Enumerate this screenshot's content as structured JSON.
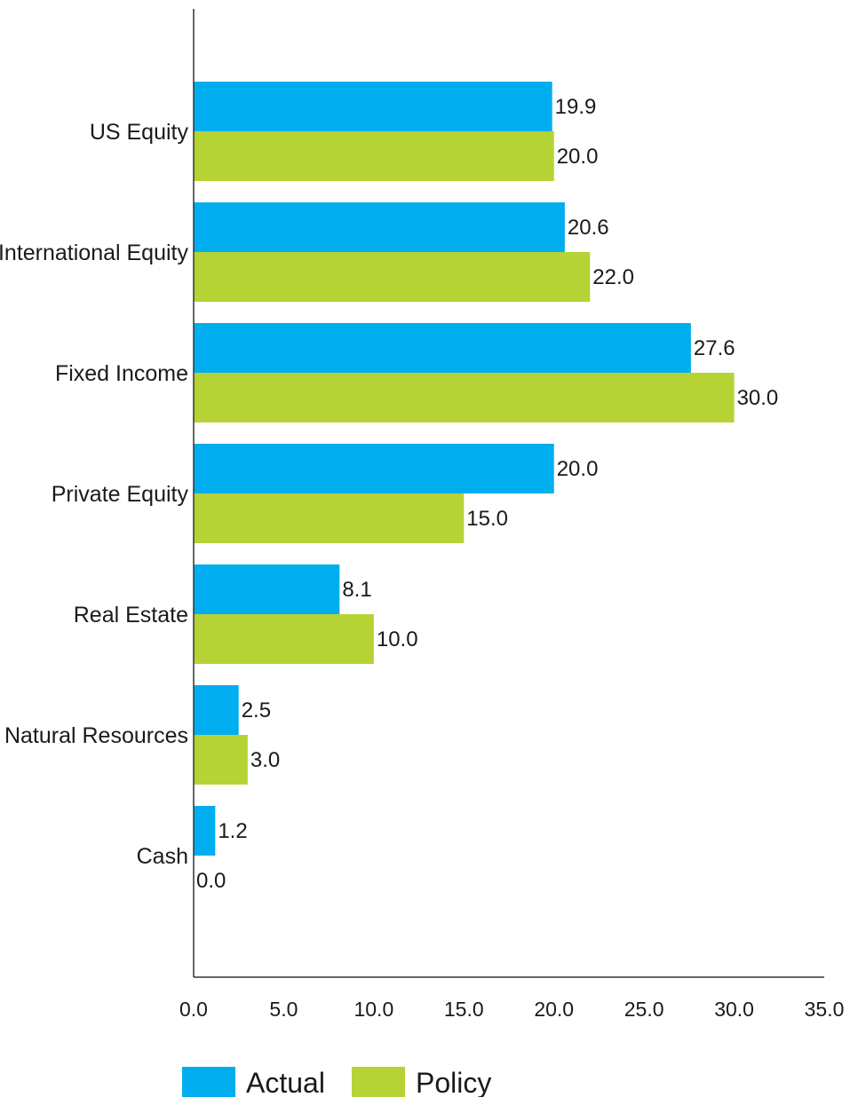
{
  "chart_data": {
    "type": "bar",
    "orientation": "horizontal",
    "categories": [
      "US Equity",
      "International Equity",
      "Fixed Income",
      "Private Equity",
      "Real Estate",
      "Natural Resources",
      "Cash"
    ],
    "series": [
      {
        "name": "Actual",
        "color": "#00aeef",
        "values": [
          19.9,
          20.6,
          27.6,
          20.0,
          8.1,
          2.5,
          1.2
        ]
      },
      {
        "name": "Policy",
        "color": "#b5d334",
        "values": [
          20.0,
          22.0,
          30.0,
          15.0,
          10.0,
          3.0,
          0.0
        ]
      }
    ],
    "xlim": [
      0,
      35
    ],
    "x_ticks": [
      "0.0",
      "5.0",
      "10.0",
      "15.0",
      "20.0",
      "25.0",
      "30.0",
      "35.0"
    ],
    "data_labels": true,
    "value_format_decimals": 1,
    "grid": false,
    "legend_position": "bottom-left"
  }
}
